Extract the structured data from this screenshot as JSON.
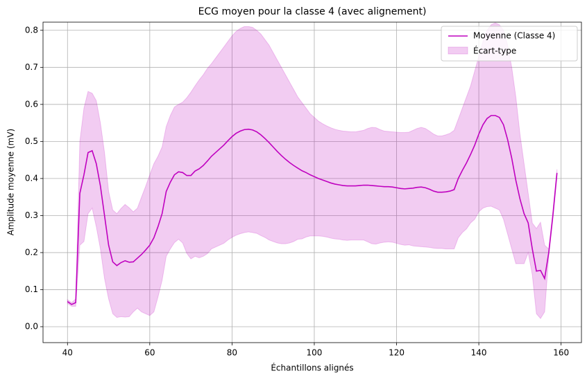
{
  "chart_data": {
    "type": "line",
    "title": "ECG moyen pour la classe 4 (avec alignement)",
    "x_label": "Échantillons alignés",
    "y_label": "Amplitude moyenne (mV)",
    "x": [
      40,
      41,
      42,
      43,
      44,
      45,
      46,
      47,
      48,
      49,
      50,
      51,
      52,
      53,
      54,
      55,
      56,
      57,
      58,
      59,
      60,
      61,
      62,
      63,
      64,
      65,
      66,
      67,
      68,
      69,
      70,
      71,
      72,
      73,
      74,
      75,
      76,
      77,
      78,
      79,
      80,
      81,
      82,
      83,
      84,
      85,
      86,
      87,
      88,
      89,
      90,
      91,
      92,
      93,
      94,
      95,
      96,
      97,
      98,
      99,
      100,
      101,
      102,
      103,
      104,
      105,
      106,
      107,
      108,
      109,
      110,
      111,
      112,
      113,
      114,
      115,
      116,
      117,
      118,
      119,
      120,
      121,
      122,
      123,
      124,
      125,
      126,
      127,
      128,
      129,
      130,
      131,
      132,
      133,
      134,
      135,
      136,
      137,
      138,
      139,
      140,
      141,
      142,
      143,
      144,
      145,
      146,
      147,
      148,
      149,
      150,
      151,
      152,
      153,
      154,
      155,
      156,
      157,
      158,
      159
    ],
    "series": [
      {
        "name": "Moyenne (Classe 4)",
        "color": "#bf00bf",
        "values": [
          0.068,
          0.06,
          0.065,
          0.36,
          0.41,
          0.47,
          0.475,
          0.44,
          0.38,
          0.3,
          0.22,
          0.175,
          0.165,
          0.173,
          0.178,
          0.174,
          0.175,
          0.185,
          0.195,
          0.207,
          0.22,
          0.24,
          0.27,
          0.305,
          0.365,
          0.39,
          0.41,
          0.418,
          0.416,
          0.408,
          0.408,
          0.42,
          0.426,
          0.435,
          0.447,
          0.46,
          0.47,
          0.48,
          0.49,
          0.502,
          0.513,
          0.522,
          0.528,
          0.532,
          0.533,
          0.531,
          0.526,
          0.518,
          0.508,
          0.497,
          0.485,
          0.473,
          0.462,
          0.452,
          0.443,
          0.435,
          0.428,
          0.421,
          0.416,
          0.41,
          0.405,
          0.4,
          0.396,
          0.392,
          0.388,
          0.385,
          0.383,
          0.381,
          0.38,
          0.38,
          0.38,
          0.381,
          0.382,
          0.382,
          0.381,
          0.38,
          0.379,
          0.378,
          0.378,
          0.377,
          0.375,
          0.373,
          0.372,
          0.373,
          0.374,
          0.376,
          0.377,
          0.375,
          0.371,
          0.366,
          0.363,
          0.363,
          0.364,
          0.366,
          0.37,
          0.4,
          0.422,
          0.442,
          0.465,
          0.49,
          0.52,
          0.545,
          0.562,
          0.57,
          0.57,
          0.565,
          0.545,
          0.505,
          0.455,
          0.395,
          0.345,
          0.305,
          0.28,
          0.21,
          0.15,
          0.152,
          0.13,
          0.2,
          0.3,
          0.415
        ]
      },
      {
        "name": "Écart-type",
        "color": "#bf00bf",
        "opacity": 0.2,
        "values": [
          0.005,
          0.005,
          0.01,
          0.14,
          0.18,
          0.165,
          0.155,
          0.17,
          0.17,
          0.17,
          0.145,
          0.14,
          0.14,
          0.146,
          0.152,
          0.147,
          0.135,
          0.135,
          0.155,
          0.172,
          0.19,
          0.2,
          0.19,
          0.18,
          0.175,
          0.18,
          0.183,
          0.182,
          0.19,
          0.21,
          0.225,
          0.23,
          0.24,
          0.245,
          0.25,
          0.25,
          0.255,
          0.26,
          0.265,
          0.268,
          0.272,
          0.275,
          0.277,
          0.278,
          0.277,
          0.277,
          0.274,
          0.272,
          0.267,
          0.263,
          0.255,
          0.247,
          0.238,
          0.228,
          0.217,
          0.205,
          0.192,
          0.184,
          0.174,
          0.165,
          0.16,
          0.155,
          0.152,
          0.15,
          0.149,
          0.148,
          0.147,
          0.147,
          0.147,
          0.146,
          0.146,
          0.147,
          0.148,
          0.153,
          0.157,
          0.157,
          0.153,
          0.15,
          0.149,
          0.149,
          0.15,
          0.151,
          0.152,
          0.152,
          0.156,
          0.159,
          0.161,
          0.16,
          0.157,
          0.154,
          0.152,
          0.152,
          0.154,
          0.156,
          0.16,
          0.16,
          0.168,
          0.178,
          0.185,
          0.2,
          0.21,
          0.225,
          0.238,
          0.245,
          0.25,
          0.25,
          0.255,
          0.255,
          0.245,
          0.225,
          0.175,
          0.135,
          0.08,
          0.07,
          0.115,
          0.13,
          0.09,
          0.01,
          0.01,
          0.01
        ]
      }
    ],
    "xlim": [
      34.05,
      164.95
    ],
    "xticks": [
      40,
      60,
      80,
      100,
      120,
      140,
      160
    ],
    "ylim": [
      -0.043,
      0.822
    ],
    "yticks": [
      {
        "value": 0,
        "label": "0.0"
      },
      0.1,
      0.2,
      0.3,
      0.4,
      0.5,
      0.6,
      0.7,
      0.8
    ],
    "grid": true,
    "legend": "upper right"
  }
}
